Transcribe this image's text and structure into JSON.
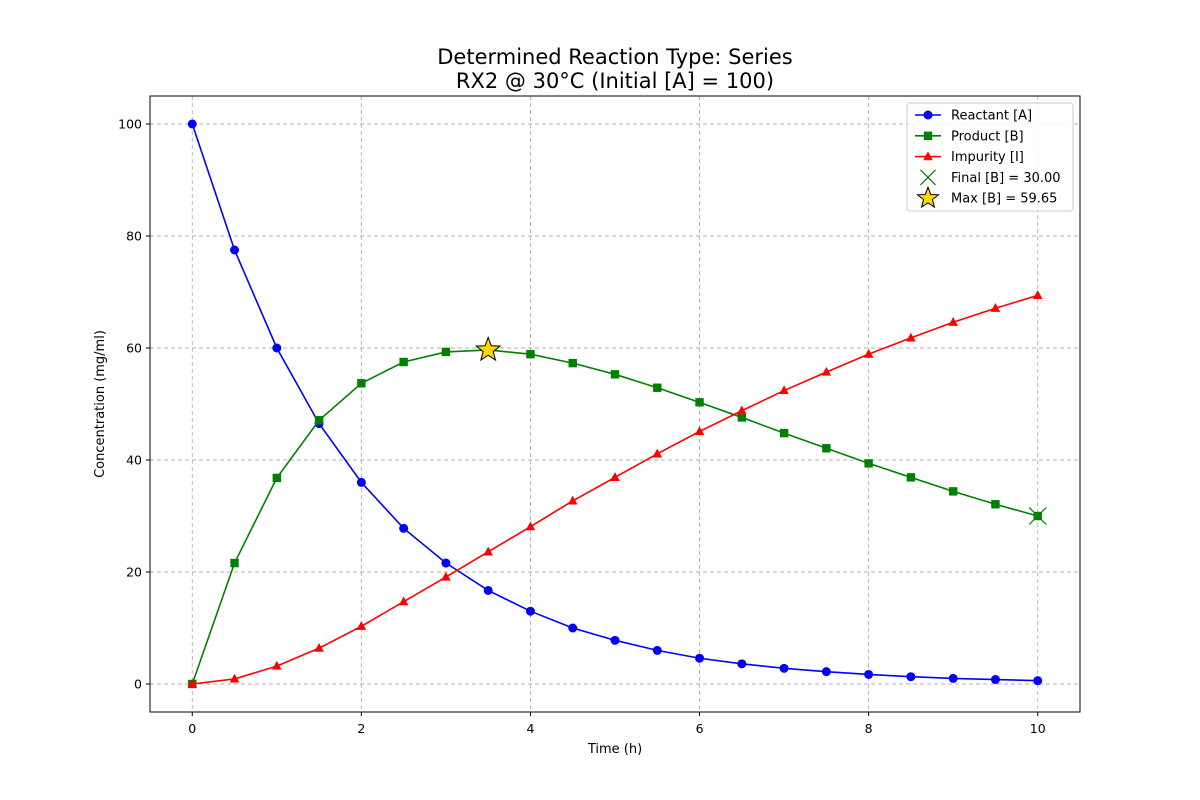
{
  "chart_data": {
    "type": "line",
    "title": [
      "Determined Reaction Type: Series",
      "RX2 @ 30°C (Initial [A] = 100)"
    ],
    "xlabel": "Time (h)",
    "ylabel": "Concentration (mg/ml)",
    "xlim": [
      -0.5,
      10.5
    ],
    "ylim": [
      -5,
      105
    ],
    "xticks": [
      0,
      2,
      4,
      6,
      8,
      10
    ],
    "yticks": [
      0,
      20,
      40,
      60,
      80,
      100
    ],
    "grid": true,
    "legend_position": "top-right",
    "x": [
      0,
      0.5,
      1,
      1.5,
      2,
      2.5,
      3,
      3.5,
      4,
      4.5,
      5,
      5.5,
      6,
      6.5,
      7,
      7.5,
      8,
      8.5,
      9,
      9.5,
      10
    ],
    "series": [
      {
        "name": "Reactant [A]",
        "color": "#0000ff",
        "marker": "circle",
        "values": [
          100,
          77.5,
          60,
          46.5,
          36,
          27.8,
          21.6,
          16.7,
          13,
          10,
          7.8,
          6,
          4.6,
          3.6,
          2.8,
          2.2,
          1.7,
          1.3,
          1,
          0.8,
          0.6
        ]
      },
      {
        "name": "Product [B]",
        "color": "#008000",
        "marker": "square",
        "values": [
          0,
          21.6,
          36.8,
          47.1,
          53.7,
          57.5,
          59.3,
          59.65,
          58.9,
          57.3,
          55.3,
          52.9,
          50.3,
          47.6,
          44.8,
          42.1,
          39.4,
          36.9,
          34.4,
          32.1,
          30
        ]
      },
      {
        "name": "Impurity [I]",
        "color": "#ff0000",
        "marker": "triangle",
        "values": [
          0,
          0.9,
          3.2,
          6.4,
          10.3,
          14.7,
          19.1,
          23.6,
          28.1,
          32.7,
          36.9,
          41.1,
          45.1,
          48.8,
          52.4,
          55.7,
          58.9,
          61.8,
          64.6,
          67.1,
          69.4
        ]
      }
    ],
    "annotations": [
      {
        "name": "Final [B] = 30.00",
        "marker": "x",
        "color": "#008000",
        "x": 10,
        "y": 30
      },
      {
        "name": "Max [B] = 59.65",
        "marker": "star",
        "color": "#ffd700",
        "edge_color": "#000000",
        "x": 3.5,
        "y": 59.65
      }
    ]
  }
}
